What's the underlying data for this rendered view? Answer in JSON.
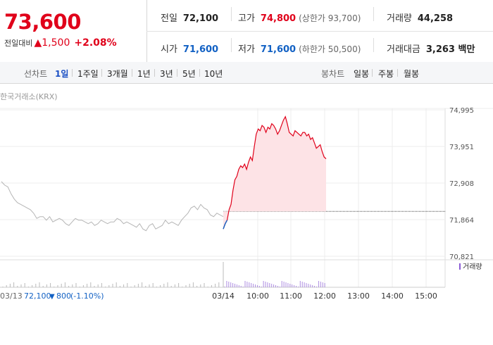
{
  "quote": {
    "price": "73,600",
    "change_label": "전일대비",
    "change_arrow": "▲",
    "change": "1,500",
    "change_pct": "+2.08%"
  },
  "summary": {
    "prev_close": {
      "label": "전일",
      "value": "72,100"
    },
    "high": {
      "label": "고가",
      "value": "74,800",
      "sub": "(상한가 93,700)"
    },
    "volume": {
      "label": "거래량",
      "value": "44,258"
    },
    "open": {
      "label": "시가",
      "value": "71,600"
    },
    "low": {
      "label": "저가",
      "value": "71,600",
      "sub": "(하한가 50,500)"
    },
    "amount": {
      "label": "거래대금",
      "value": "3,263 백만"
    }
  },
  "line_tabs": {
    "label": "선차트",
    "items": [
      "1일",
      "1주일",
      "3개월",
      "1년",
      "3년",
      "5년",
      "10년"
    ],
    "active": "1일"
  },
  "candle_tabs": {
    "label": "봉차트",
    "items": [
      "일봉",
      "주봉",
      "월봉"
    ]
  },
  "source": "한국거래소(KRX)",
  "prev_day": {
    "date": "03/13",
    "close": "72,100",
    "arrow": "▼",
    "change": "800",
    "pct": "(-1.10%)"
  },
  "colors": {
    "up": "#e0001a",
    "down": "#1261c4",
    "prev": "#b5b5b5",
    "fill": "#fde3e6",
    "volume": "#8a5bd6"
  },
  "chart_data": {
    "type": "line",
    "title": "",
    "xlabel": "",
    "ylabel": "",
    "ylim": [
      70821,
      74995
    ],
    "y_ticks": [
      "74,995",
      "73,951",
      "72,908",
      "71,864",
      "70,821"
    ],
    "x_ticks": [
      "03/14",
      "10:00",
      "11:00",
      "12:00",
      "13:00",
      "14:00",
      "15:00"
    ],
    "reference_line": 72100,
    "volume_legend": "거래량",
    "series": [
      {
        "values_prev_day": [
          72950,
          72850,
          72800,
          72600,
          72450,
          72350,
          72300,
          72250,
          72200,
          72150,
          72050,
          71900,
          71950,
          71950,
          71850,
          71950,
          71800,
          71850,
          71900,
          71850,
          71750,
          71700,
          71800,
          71900,
          71850,
          71850,
          71800,
          71750,
          71800,
          71700,
          71750,
          71850,
          71800,
          71750,
          71800,
          71800,
          71900,
          71850,
          71750,
          71800,
          71750,
          71700,
          71650,
          71750,
          71600,
          71550,
          71700,
          71750,
          71600,
          71650,
          71700,
          71850,
          71750,
          71800,
          71750,
          71700,
          71850,
          71950,
          72050,
          72200,
          72250,
          72150,
          72300,
          72200,
          72150,
          72000,
          71950,
          72050,
          72000,
          71950
        ],
        "values_today": [
          71600,
          71750,
          71850,
          72150,
          72300,
          72700,
          73000,
          73100,
          73300,
          73400,
          73350,
          73450,
          73300,
          73500,
          73650,
          73550,
          73950,
          74300,
          74450,
          74400,
          74550,
          74500,
          74350,
          74500,
          74450,
          74600,
          74550,
          74450,
          74300,
          74400,
          74550,
          74700,
          74800,
          74600,
          74350,
          74300,
          74250,
          74400,
          74350,
          74300,
          74250,
          74350,
          74350,
          74250,
          74300,
          74150,
          74200,
          74050,
          73900,
          73950,
          74000,
          73800,
          73650,
          73600
        ]
      }
    ]
  }
}
